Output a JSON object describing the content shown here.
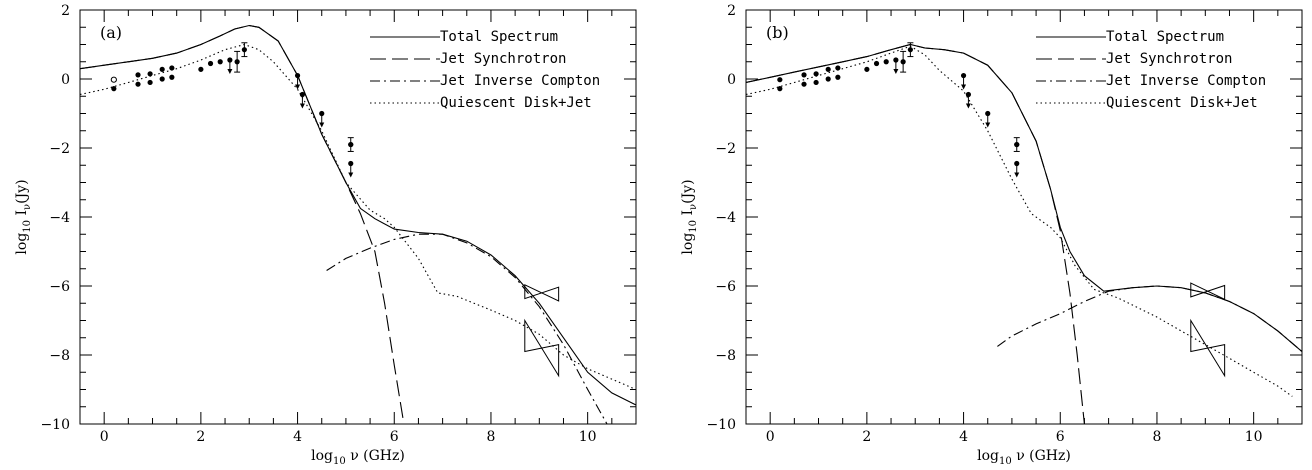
{
  "chart_data": [
    {
      "type": "line",
      "panel_label": "(a)",
      "xlabel": "log10 ν (GHz)",
      "ylabel": "log10 Iν(Jy)",
      "xlim": [
        -0.5,
        11
      ],
      "ylim": [
        -10,
        2
      ],
      "x_ticks": [
        0,
        2,
        4,
        6,
        8,
        10
      ],
      "y_ticks": [
        2,
        0,
        -2,
        -4,
        -6,
        -8,
        -10
      ],
      "grid": false,
      "legend_position": "top-right",
      "series": [
        {
          "name": "Total Spectrum",
          "style": "solid",
          "x": [
            -0.5,
            0,
            0.5,
            1,
            1.5,
            2,
            2.4,
            2.7,
            3,
            3.2,
            3.6,
            4,
            4.5,
            5,
            5.3,
            5.6,
            6,
            6.5,
            7,
            7.5,
            8,
            8.5,
            9,
            9.5,
            10,
            10.5,
            11
          ],
          "y": [
            0.3,
            0.4,
            0.5,
            0.6,
            0.75,
            1.0,
            1.25,
            1.45,
            1.55,
            1.5,
            1.1,
            0.1,
            -1.6,
            -3.0,
            -3.75,
            -4.05,
            -4.35,
            -4.45,
            -4.5,
            -4.7,
            -5.1,
            -5.7,
            -6.5,
            -7.5,
            -8.5,
            -9.1,
            -9.45
          ]
        },
        {
          "name": "Jet Synchrotron",
          "style": "dashed",
          "x": [
            -0.5,
            0,
            0.5,
            1,
            1.5,
            2,
            2.4,
            2.7,
            3,
            3.2,
            3.6,
            4,
            4.5,
            5,
            5.3,
            5.6,
            5.8,
            6,
            6.2
          ],
          "y": [
            0.3,
            0.4,
            0.5,
            0.6,
            0.75,
            1.0,
            1.25,
            1.45,
            1.55,
            1.5,
            1.1,
            0.1,
            -1.6,
            -3.0,
            -3.9,
            -5.0,
            -6.5,
            -8.3,
            -10
          ]
        },
        {
          "name": "Jet Inverse Compton",
          "style": "dashdot",
          "x": [
            4.6,
            5,
            5.5,
            6,
            6.5,
            7,
            7.5,
            8,
            8.5,
            9,
            9.5,
            10,
            10.4
          ],
          "y": [
            -5.55,
            -5.2,
            -4.9,
            -4.65,
            -4.5,
            -4.5,
            -4.75,
            -5.15,
            -5.75,
            -6.6,
            -7.7,
            -9.0,
            -10
          ]
        },
        {
          "name": "Quiescent Disk+Jet",
          "style": "dotted",
          "x": [
            -0.5,
            0,
            0.5,
            1,
            1.5,
            2,
            2.5,
            2.9,
            3.2,
            3.5,
            4,
            4.5,
            5,
            5.5,
            5.8,
            6,
            6.5,
            6.9,
            7.3,
            8,
            8.5,
            9,
            9.5,
            10,
            10.5,
            11
          ],
          "y": [
            -0.45,
            -0.3,
            -0.1,
            0.1,
            0.3,
            0.55,
            0.85,
            1.0,
            0.85,
            0.5,
            -0.3,
            -1.5,
            -3.0,
            -3.8,
            -4.05,
            -4.3,
            -5.2,
            -6.2,
            -6.3,
            -6.7,
            -7.0,
            -7.4,
            -8.0,
            -8.4,
            -8.7,
            -9.0
          ]
        }
      ],
      "data_points": {
        "filled": [
          {
            "x": 0.2,
            "y": -0.28
          },
          {
            "x": 0.7,
            "y": -0.15
          },
          {
            "x": 0.7,
            "y": 0.12
          },
          {
            "x": 0.95,
            "y": -0.1
          },
          {
            "x": 0.95,
            "y": 0.15
          },
          {
            "x": 1.2,
            "y": 0.0
          },
          {
            "x": 1.2,
            "y": 0.28
          },
          {
            "x": 1.4,
            "y": 0.05
          },
          {
            "x": 1.4,
            "y": 0.32
          },
          {
            "x": 2.0,
            "y": 0.28
          },
          {
            "x": 2.2,
            "y": 0.45
          },
          {
            "x": 2.4,
            "y": 0.5
          },
          {
            "x": 2.6,
            "y": 0.55
          },
          {
            "x": 4.0,
            "y": 0.1
          },
          {
            "x": 4.1,
            "y": -0.45
          },
          {
            "x": 4.5,
            "y": -1.0
          },
          {
            "x": 5.1,
            "y": -1.9
          },
          {
            "x": 5.1,
            "y": -2.45
          }
        ],
        "open": [
          {
            "x": 0.2,
            "y": -0.02
          }
        ],
        "with_errors": [
          {
            "x": 2.75,
            "y": 0.5,
            "err": 0.3
          },
          {
            "x": 2.9,
            "y": 0.85,
            "err": 0.2
          },
          {
            "x": 5.1,
            "y": -1.9,
            "err": 0.2
          }
        ],
        "upper_limits": [
          {
            "x": 4.0,
            "y": 0.1
          },
          {
            "x": 4.1,
            "y": -0.45
          },
          {
            "x": 4.5,
            "y": -1.0
          },
          {
            "x": 5.1,
            "y": -2.45
          },
          {
            "x": 2.6,
            "y": 0.55
          }
        ]
      },
      "bowties": [
        {
          "x_range": [
            8.7,
            9.4
          ],
          "y_center": -6.2,
          "slope": -0.1,
          "spread": 0.2
        },
        {
          "x_range": [
            8.7,
            9.4
          ],
          "y_center": -7.8,
          "slope": -1.0,
          "spread": 0.45
        }
      ]
    },
    {
      "type": "line",
      "panel_label": "(b)",
      "xlabel": "log10 ν (GHz)",
      "ylabel": "log10 Iν(Jy)",
      "xlim": [
        -0.5,
        11
      ],
      "ylim": [
        -10,
        2
      ],
      "x_ticks": [
        0,
        2,
        4,
        6,
        8,
        10
      ],
      "y_ticks": [
        2,
        0,
        -2,
        -4,
        -6,
        -8,
        -10
      ],
      "grid": false,
      "legend_position": "top-right",
      "series": [
        {
          "name": "Total Spectrum",
          "style": "solid",
          "x": [
            -0.5,
            0,
            0.5,
            1,
            1.5,
            2,
            2.5,
            2.9,
            3.2,
            3.6,
            4,
            4.5,
            5,
            5.5,
            5.8,
            6,
            6.2,
            6.5,
            6.9,
            7.5,
            8,
            8.5,
            9,
            9.5,
            10,
            10.5,
            11
          ],
          "y": [
            -0.1,
            0.05,
            0.2,
            0.35,
            0.5,
            0.65,
            0.85,
            1.0,
            0.9,
            0.85,
            0.75,
            0.4,
            -0.4,
            -1.8,
            -3.2,
            -4.3,
            -5.0,
            -5.7,
            -6.15,
            -6.05,
            -6.0,
            -6.05,
            -6.2,
            -6.45,
            -6.8,
            -7.3,
            -7.9
          ]
        },
        {
          "name": "Jet Synchrotron",
          "style": "dashed",
          "x": [
            -0.5,
            0,
            0.5,
            1,
            1.5,
            2,
            2.5,
            2.9,
            3.2,
            3.6,
            4,
            4.5,
            5,
            5.5,
            5.8,
            6,
            6.2,
            6.35,
            6.5
          ],
          "y": [
            -0.1,
            0.05,
            0.2,
            0.35,
            0.5,
            0.65,
            0.85,
            1.0,
            0.9,
            0.85,
            0.75,
            0.4,
            -0.4,
            -1.8,
            -3.2,
            -4.4,
            -6.2,
            -8.0,
            -10
          ]
        },
        {
          "name": "Jet Inverse Compton",
          "style": "dashdot",
          "x": [
            4.7,
            5,
            5.5,
            6,
            6.5,
            7,
            7.5,
            8,
            8.5,
            9,
            9.5,
            10,
            10.5,
            11
          ],
          "y": [
            -7.75,
            -7.45,
            -7.1,
            -6.8,
            -6.45,
            -6.15,
            -6.05,
            -6.0,
            -6.05,
            -6.2,
            -6.45,
            -6.8,
            -7.3,
            -7.9
          ]
        },
        {
          "name": "Quiescent Disk+Jet",
          "style": "dotted",
          "x": [
            -0.5,
            0,
            0.5,
            1,
            1.5,
            2,
            2.5,
            2.9,
            3.2,
            3.5,
            4,
            4.5,
            5,
            5.4,
            5.8,
            6,
            6.3,
            6.7,
            7.2,
            8,
            8.5,
            9,
            9.5,
            10,
            10.5,
            10.8
          ],
          "y": [
            -0.45,
            -0.3,
            -0.1,
            0.1,
            0.3,
            0.5,
            0.75,
            0.95,
            0.7,
            0.25,
            -0.35,
            -1.5,
            -2.9,
            -3.9,
            -4.3,
            -4.6,
            -5.4,
            -6.1,
            -6.35,
            -6.9,
            -7.3,
            -7.7,
            -8.1,
            -8.5,
            -8.9,
            -9.2
          ]
        }
      ],
      "data_points": {
        "filled": [
          {
            "x": 0.2,
            "y": -0.28
          },
          {
            "x": 0.2,
            "y": -0.02
          },
          {
            "x": 0.7,
            "y": -0.15
          },
          {
            "x": 0.7,
            "y": 0.12
          },
          {
            "x": 0.95,
            "y": -0.1
          },
          {
            "x": 0.95,
            "y": 0.15
          },
          {
            "x": 1.2,
            "y": 0.0
          },
          {
            "x": 1.2,
            "y": 0.28
          },
          {
            "x": 1.4,
            "y": 0.05
          },
          {
            "x": 1.4,
            "y": 0.32
          },
          {
            "x": 2.0,
            "y": 0.28
          },
          {
            "x": 2.2,
            "y": 0.45
          },
          {
            "x": 2.4,
            "y": 0.5
          },
          {
            "x": 2.6,
            "y": 0.55
          },
          {
            "x": 4.0,
            "y": 0.1
          },
          {
            "x": 4.1,
            "y": -0.45
          },
          {
            "x": 4.5,
            "y": -1.0
          },
          {
            "x": 5.1,
            "y": -1.9
          },
          {
            "x": 5.1,
            "y": -2.45
          }
        ],
        "open": [],
        "with_errors": [
          {
            "x": 2.75,
            "y": 0.5,
            "err": 0.3
          },
          {
            "x": 2.9,
            "y": 0.85,
            "err": 0.2
          },
          {
            "x": 5.1,
            "y": -1.9,
            "err": 0.2
          }
        ],
        "upper_limits": [
          {
            "x": 4.0,
            "y": 0.1
          },
          {
            "x": 4.1,
            "y": -0.45
          },
          {
            "x": 4.5,
            "y": -1.0
          },
          {
            "x": 5.1,
            "y": -2.45
          },
          {
            "x": 2.6,
            "y": 0.55
          }
        ]
      },
      "bowties": [
        {
          "x_range": [
            8.7,
            9.4
          ],
          "y_center": -6.15,
          "slope": -0.1,
          "spread": 0.2
        },
        {
          "x_range": [
            8.7,
            9.4
          ],
          "y_center": -7.8,
          "slope": -1.0,
          "spread": 0.45
        }
      ]
    }
  ]
}
